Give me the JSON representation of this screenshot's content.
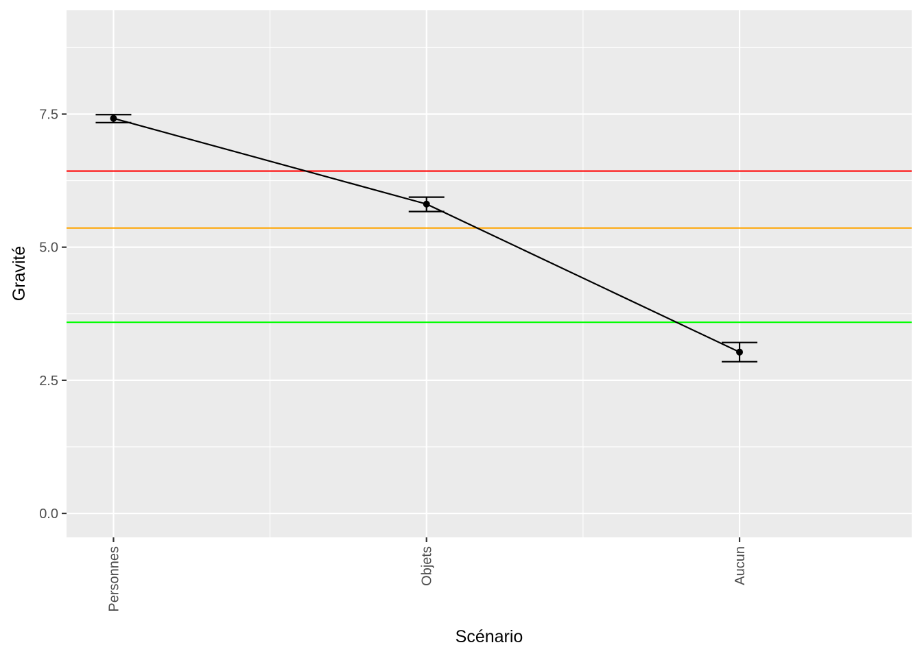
{
  "chart_data": {
    "type": "line",
    "title": "",
    "xlabel": "Scénario",
    "ylabel": "Gravité",
    "categories": [
      "Personnes",
      "Objets",
      "Aucun"
    ],
    "values": [
      7.42,
      5.81,
      3.03
    ],
    "error_bars": {
      "lower": [
        7.34,
        5.67,
        2.85
      ],
      "upper": [
        7.49,
        5.94,
        3.21
      ]
    },
    "reference_lines": [
      {
        "y": 6.43,
        "color": "#ff0000"
      },
      {
        "y": 5.36,
        "color": "#ffa500"
      },
      {
        "y": 3.59,
        "color": "#00ff00"
      }
    ],
    "ylim": [
      -0.45,
      9.45
    ],
    "yticks": [
      0.0,
      2.5,
      5.0,
      7.5
    ],
    "ytick_labels": [
      "0.0",
      "2.5",
      "5.0",
      "7.5"
    ],
    "grid": true,
    "legend": "none",
    "colors": {
      "panel": "#ebebeb",
      "grid": "#ffffff",
      "line": "#000000",
      "tick_text": "#4d4d4d"
    }
  }
}
